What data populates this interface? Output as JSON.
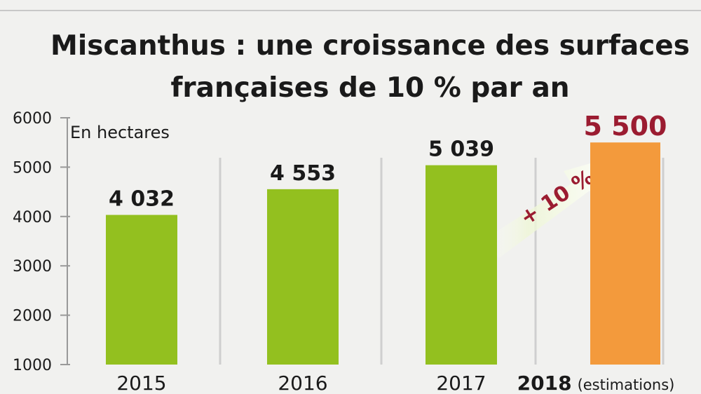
{
  "chart_data": {
    "type": "bar",
    "title_lines": [
      "Miscanthus : une croissance des surfaces",
      "françaises de 10 % par an"
    ],
    "unit_label": "En hectares",
    "categories": [
      {
        "year": "2015",
        "note": ""
      },
      {
        "year": "2016",
        "note": ""
      },
      {
        "year": "2017",
        "note": ""
      },
      {
        "year": "2018",
        "note": "(estimations)"
      }
    ],
    "values": [
      4032,
      4553,
      5039,
      5500
    ],
    "value_labels": [
      "4 032",
      "4 553",
      "5 039",
      "5 500"
    ],
    "ylim": [
      1000,
      6000
    ],
    "yticks": [
      "1000",
      "2000",
      "3000",
      "4000",
      "5000",
      "6000"
    ],
    "bar_colors": [
      "#93c01f",
      "#93c01f",
      "#93c01f",
      "#f39a3c"
    ],
    "value_label_colors": [
      "#1a1a1a",
      "#1a1a1a",
      "#1a1a1a",
      "#9b1c31"
    ],
    "annotation": "+ 10 %",
    "annotation_color": "#9b1c31",
    "background": "#f1f1ef"
  }
}
